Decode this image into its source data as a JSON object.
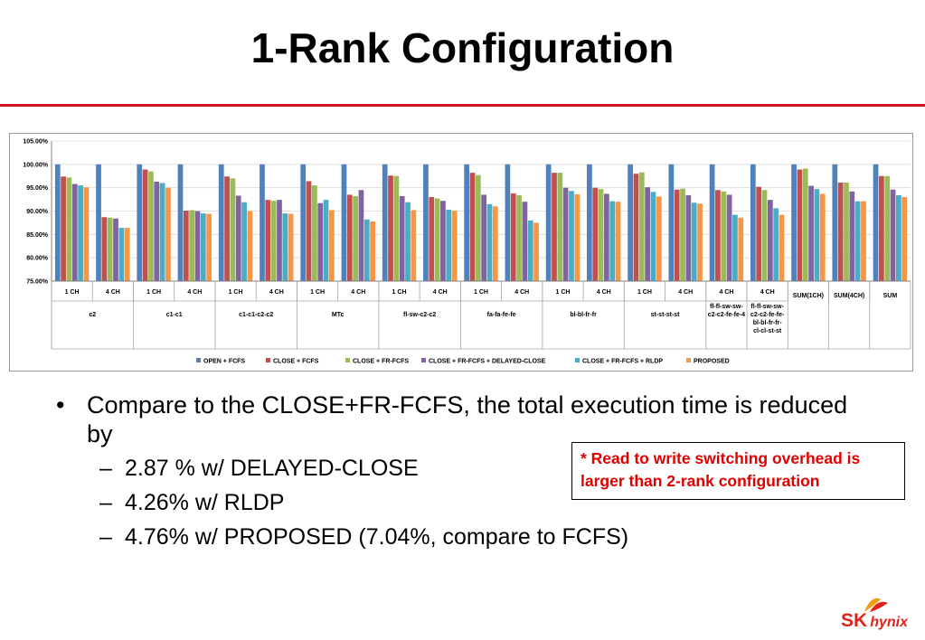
{
  "slide": {
    "title": "1-Rank Configuration",
    "bullet_main": "Compare to the CLOSE+FR-FCFS, the total execution time is reduced by",
    "sub_bullets": [
      "2.87 % w/ DELAYED-CLOSE",
      "4.26% w/ RLDP",
      "4.76% w/ PROPOSED (7.04%, compare to FCFS)"
    ],
    "note": "* Read to write switching overhead is larger than 2-rank configuration",
    "logo": {
      "brand": "SK",
      "name": "hynix"
    }
  },
  "chart_data": {
    "type": "bar",
    "ylim": [
      75,
      105
    ],
    "yticks": [
      "75.00%",
      "80.00%",
      "85.00%",
      "90.00%",
      "95.00%",
      "100.00%",
      "105.00%"
    ],
    "categories": [
      "1 CH",
      "4 CH",
      "1 CH",
      "4 CH",
      "1 CH",
      "4 CH",
      "1 CH",
      "4 CH",
      "1 CH",
      "4 CH",
      "1 CH",
      "4 CH",
      "1 CH",
      "4 CH",
      "1 CH",
      "4 CH",
      "4 CH",
      "4 CH",
      "",
      "",
      ""
    ],
    "groups": [
      {
        "label": "c2",
        "span": 2
      },
      {
        "label": "c1-c1",
        "span": 2
      },
      {
        "label": "c1-c1-c2-c2",
        "span": 2
      },
      {
        "label": "MTc",
        "span": 2
      },
      {
        "label": "fl-sw-c2-c2",
        "span": 2
      },
      {
        "label": "fa-fa-fe-fe",
        "span": 2
      },
      {
        "label": "bl-bl-fr-fr",
        "span": 2
      },
      {
        "label": "st-st-st-st",
        "span": 2
      },
      {
        "label": "fl-fl-sw-sw-c2-c2-fe-fe-4",
        "span": 1
      },
      {
        "label": "fl-fl-sw-sw-c2-c2-fe-fe-bl-bl-fr-fr-cl-cl-st-st",
        "span": 1
      },
      {
        "label": "SUM(1CH)",
        "span": 1
      },
      {
        "label": "SUM(4CH)",
        "span": 1
      },
      {
        "label": "SUM",
        "span": 1
      }
    ],
    "series": [
      {
        "name": "OPEN + FCFS",
        "color": "#4f81bd",
        "values": [
          100,
          100,
          100,
          100,
          100,
          100,
          100,
          100,
          100,
          100,
          100,
          100,
          100,
          100,
          100,
          100,
          100,
          100,
          100,
          100,
          100
        ]
      },
      {
        "name": "CLOSE + FCFS",
        "color": "#c0504d",
        "values": [
          97.4,
          88.7,
          98.9,
          90.1,
          97.4,
          92.4,
          96.4,
          93.5,
          97.6,
          93.0,
          98.2,
          93.8,
          98.2,
          95.0,
          98.0,
          94.6,
          94.5,
          95.2,
          98.9,
          96.1,
          97.5
        ]
      },
      {
        "name": "CLOSE + FR-FCFS",
        "color": "#9bbb59",
        "values": [
          97.2,
          88.6,
          98.5,
          90.2,
          97.0,
          92.2,
          95.5,
          93.2,
          97.5,
          92.7,
          97.7,
          93.4,
          98.2,
          94.7,
          98.3,
          94.8,
          94.2,
          94.5,
          99.1,
          96.1,
          97.5
        ]
      },
      {
        "name": "CLOSE + FR-FCFS + DELAYED-CLOSE",
        "color": "#8064a2",
        "values": [
          95.8,
          88.4,
          96.3,
          90.0,
          93.3,
          92.4,
          91.7,
          94.5,
          93.2,
          92.2,
          93.5,
          92.0,
          95.0,
          93.7,
          95.1,
          93.4,
          93.5,
          92.4,
          95.4,
          94.2,
          94.6
        ]
      },
      {
        "name": "CLOSE + FR-FCFS + RLDP",
        "color": "#4bacc6",
        "values": [
          95.5,
          86.4,
          96.0,
          89.5,
          91.9,
          89.5,
          92.4,
          88.2,
          91.9,
          90.3,
          91.5,
          88.0,
          94.3,
          92.1,
          94.1,
          91.8,
          89.2,
          90.6,
          94.7,
          92.1,
          93.4
        ]
      },
      {
        "name": "PROPOSED",
        "color": "#f79646",
        "values": [
          95.1,
          86.4,
          95.0,
          89.4,
          90.0,
          89.4,
          90.2,
          87.8,
          90.2,
          90.1,
          91.0,
          87.5,
          93.6,
          92.0,
          93.1,
          91.6,
          88.6,
          89.2,
          93.7,
          92.1,
          93.0
        ]
      }
    ],
    "legend": "bottom"
  }
}
